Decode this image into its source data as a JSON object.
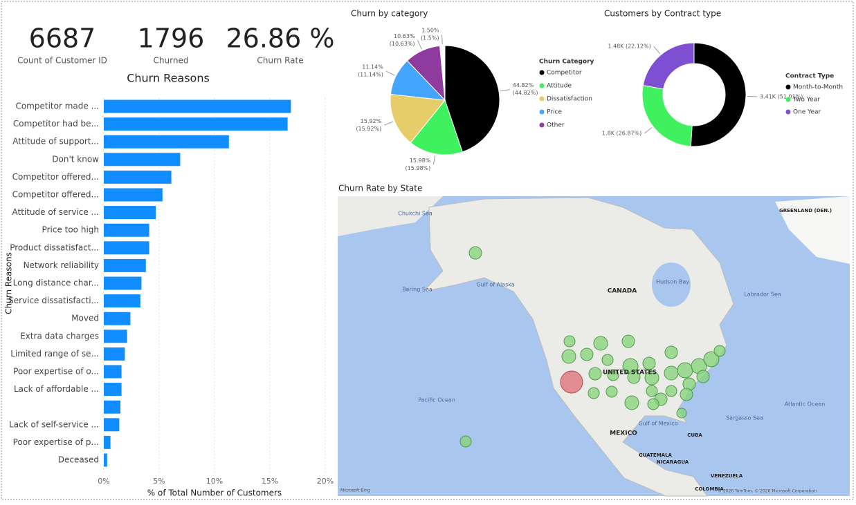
{
  "cards": [
    {
      "value": "6687",
      "label": "Count of Customer ID"
    },
    {
      "value": "1796",
      "label": "Churned"
    },
    {
      "value": "26.86 %",
      "label": "Churn Rate"
    }
  ],
  "chart_data": [
    {
      "type": "hbar",
      "title": "Churn Reasons",
      "x_label": "% of Total Number of Customers",
      "y_label": "Churn Reasons",
      "categories": [
        "Competitor made ...",
        "Competitor had be...",
        "Attitude of support...",
        "Don't know",
        "Competitor offered...",
        "Competitor offered...",
        "Attitude of service ...",
        "Price too high",
        "Product dissatisfact...",
        "Network reliability",
        "Long distance char...",
        "Service dissatisfacti...",
        "Moved",
        "Extra data charges",
        "Limited range of se...",
        "Poor expertise of o...",
        "Lack of affordable ...",
        null,
        "Lack of self-service ...",
        "Poor expertise of p...",
        "Deceased"
      ],
      "values": [
        16.9,
        16.6,
        11.3,
        6.9,
        6.1,
        5.3,
        4.7,
        4.1,
        4.1,
        3.8,
        3.4,
        3.3,
        2.4,
        2.1,
        1.9,
        1.6,
        1.6,
        1.5,
        1.4,
        0.6,
        0.3
      ],
      "color": "#118dff",
      "xlim": [
        0,
        20
      ],
      "xticks": [
        {
          "value": 0,
          "label": "0%"
        },
        {
          "value": 5,
          "label": "5%"
        },
        {
          "value": 10,
          "label": "10%"
        },
        {
          "value": 15,
          "label": "15%"
        },
        {
          "value": 20,
          "label": "20%"
        }
      ],
      "grid": true
    },
    {
      "type": "pie",
      "title": "Churn by category",
      "legend_title": "Churn Category",
      "categories": [
        "Competitor",
        "Attitude",
        "Dissatisfaction",
        "Price",
        "Other",
        null
      ],
      "values": [
        44.82,
        15.98,
        15.92,
        11.14,
        10.63,
        1.5
      ],
      "value_labels": [
        "44.82%",
        "15.98%",
        "15.92%",
        "11.14%",
        "10.63%",
        "1.50%"
      ],
      "percent_labels": [
        "(44.82%)",
        "(15.98%)",
        "(15.92%)",
        "(11.14%)",
        "(10.63%)",
        "(1.5%)"
      ],
      "colors": [
        "#000000",
        "#3ff15e",
        "#e6cd6a",
        "#44a5ff",
        "#8e3a9e",
        "#ffffff"
      ]
    },
    {
      "type": "donut",
      "title": "Customers by Contract type",
      "legend_title": "Contract Type",
      "categories": [
        "Month-to-Month",
        "Two Year",
        "One Year"
      ],
      "values": [
        51.01,
        26.87,
        22.12
      ],
      "value_labels": [
        "3.41K (51.01%)",
        "1.8K (26.87%)",
        "1.48K (22.12%)"
      ],
      "colors": [
        "#000000",
        "#3ff15e",
        "#7e4fd1"
      ]
    }
  ],
  "map": {
    "title": "Churn Rate by State",
    "labels": [
      "CANADA",
      "UNITED STATES",
      "MEXICO",
      "Pacific Ocean",
      "Atlantic Ocean",
      "Hudson Bay",
      "Gulf of Alaska",
      "Bering Sea",
      "Chukchi Sea",
      "Labrador Sea",
      "Gulf of Mexico",
      "Sargasso Sea",
      "GREENLAND (DEN.)",
      "CUBA",
      "GUATEMALA",
      "NICARAGUA",
      "VENEZUELA",
      "COLOMBIA",
      "Microsoft Bing",
      "© 2026 TomTom, © 2026 Microsoft Corporation"
    ]
  }
}
